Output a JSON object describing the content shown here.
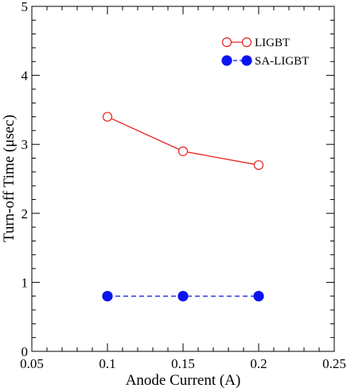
{
  "chart_data": {
    "type": "line",
    "xlabel": "Anode Current (A)",
    "ylabel": "Turn-off Time (μsec)",
    "xlim": [
      0.05,
      0.25
    ],
    "ylim": [
      0,
      5
    ],
    "x_ticks": [
      0.05,
      0.1,
      0.15,
      0.2,
      0.25
    ],
    "x_tick_labels": [
      "0.05",
      "0.1",
      "0.15",
      "0.2",
      "0.25"
    ],
    "y_ticks": [
      0,
      1,
      2,
      3,
      4,
      5
    ],
    "y_tick_labels": [
      "0",
      "1",
      "2",
      "3",
      "4",
      "5"
    ],
    "grid": false,
    "legend_position": "top-right",
    "series": [
      {
        "name": "LIGBT",
        "x": [
          0.1,
          0.15,
          0.2
        ],
        "values": [
          3.4,
          2.9,
          2.7
        ],
        "color": "#e8201c",
        "line_style": "solid",
        "marker": "open-circle"
      },
      {
        "name": "SA-LIGBT",
        "x": [
          0.1,
          0.15,
          0.2
        ],
        "values": [
          0.8,
          0.8,
          0.8
        ],
        "color": "#0a14f0",
        "line_style": "dashed",
        "marker": "filled-circle"
      }
    ]
  }
}
